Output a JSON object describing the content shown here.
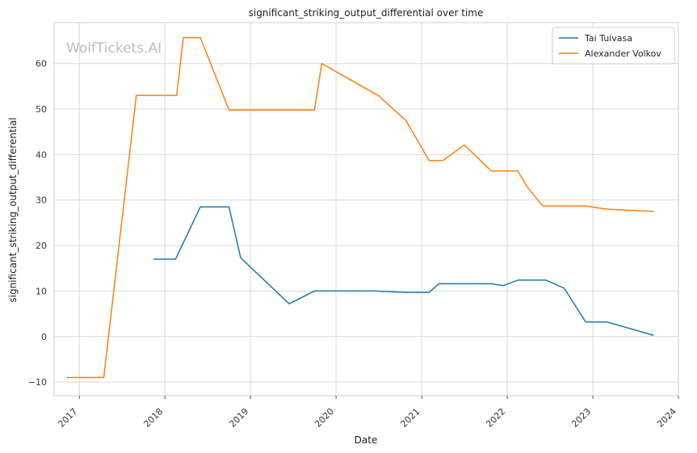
{
  "chart_data": {
    "type": "line",
    "title": "significant_striking_output_differential over time",
    "xlabel": "Date",
    "ylabel": "significant_striking_output_differential",
    "watermark": "WolfTickets.AI",
    "x_ticks": [
      "2017",
      "2018",
      "2019",
      "2020",
      "2021",
      "2022",
      "2023",
      "2024"
    ],
    "y_ticks": [
      -10,
      0,
      10,
      20,
      30,
      40,
      50,
      60
    ],
    "xlim": [
      "2016-09-15",
      "2024-01-01"
    ],
    "ylim": [
      -13,
      69
    ],
    "grid": true,
    "legend_position": "top-right",
    "series": [
      {
        "name": "Tai Tuivasa",
        "color": "#1f77b4",
        "points": [
          [
            "2017-11-15",
            17
          ],
          [
            "2018-02-15",
            17
          ],
          [
            "2018-06-01",
            28.5
          ],
          [
            "2018-10-01",
            28.5
          ],
          [
            "2018-11-20",
            17.3
          ],
          [
            "2019-06-15",
            7.2
          ],
          [
            "2019-10-01",
            10
          ],
          [
            "2020-06-15",
            10
          ],
          [
            "2020-10-25",
            9.7
          ],
          [
            "2021-02-01",
            9.7
          ],
          [
            "2021-03-15",
            11.6
          ],
          [
            "2021-07-01",
            11.6
          ],
          [
            "2021-10-25",
            11.6
          ],
          [
            "2021-12-15",
            11.2
          ],
          [
            "2022-02-15",
            12.4
          ],
          [
            "2022-06-15",
            12.4
          ],
          [
            "2022-09-01",
            10.6
          ],
          [
            "2022-12-01",
            3.2
          ],
          [
            "2023-03-01",
            3.2
          ],
          [
            "2023-09-15",
            0.3
          ]
        ]
      },
      {
        "name": "Alexander Volkov",
        "color": "#ff7f0e",
        "points": [
          [
            "2016-11-10",
            -9
          ],
          [
            "2017-04-15",
            -9
          ],
          [
            "2017-09-01",
            53
          ],
          [
            "2018-02-20",
            53
          ],
          [
            "2018-03-20",
            65.7
          ],
          [
            "2018-06-01",
            65.7
          ],
          [
            "2018-10-01",
            49.8
          ],
          [
            "2019-10-01",
            49.8
          ],
          [
            "2019-11-01",
            60
          ],
          [
            "2020-07-01",
            52.9
          ],
          [
            "2020-10-25",
            47.5
          ],
          [
            "2021-02-01",
            38.7
          ],
          [
            "2021-04-01",
            38.7
          ],
          [
            "2021-07-01",
            42.1
          ],
          [
            "2021-10-25",
            36.4
          ],
          [
            "2022-02-15",
            36.4
          ],
          [
            "2022-03-25",
            33.0
          ],
          [
            "2022-06-01",
            28.7
          ],
          [
            "2022-12-01",
            28.7
          ],
          [
            "2023-03-01",
            28.0
          ],
          [
            "2023-09-15",
            27.5
          ]
        ]
      }
    ]
  }
}
